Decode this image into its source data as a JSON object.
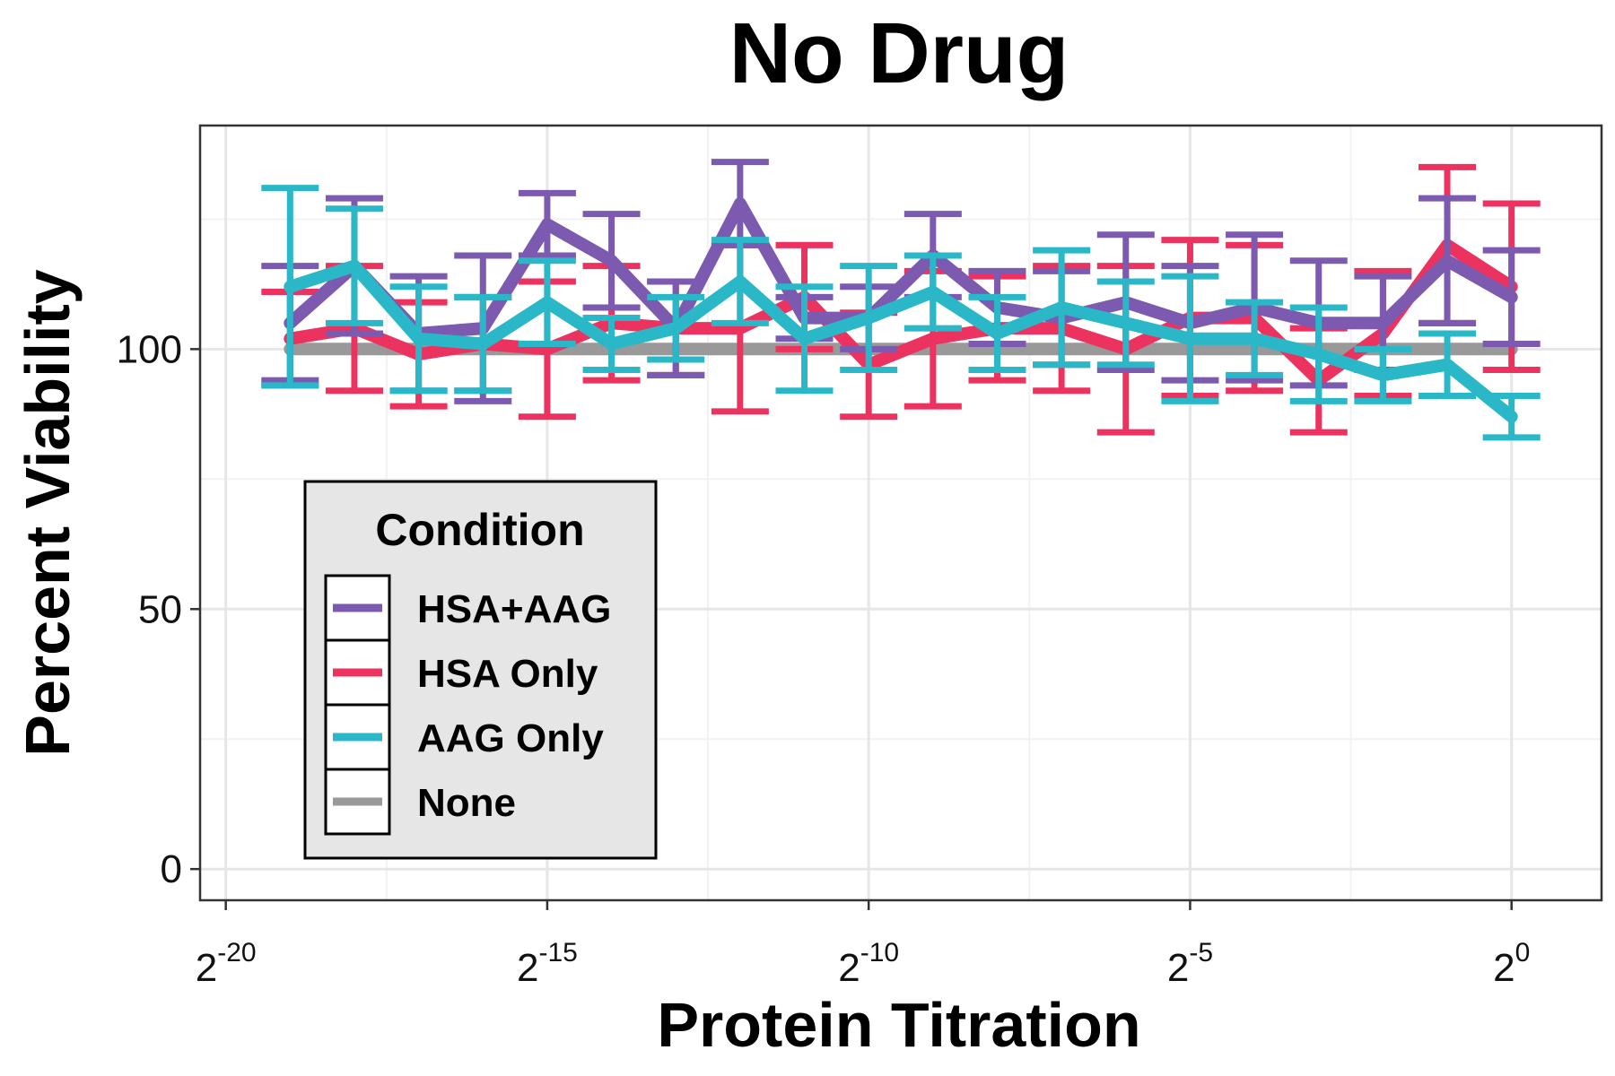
{
  "chart_data": {
    "type": "line",
    "title": "No Drug",
    "xlabel": "Protein Titration",
    "ylabel": "Percent Viability",
    "x_scale": "log2",
    "x_exponents": [
      -19,
      -18,
      -17,
      -16,
      -15,
      -14,
      -13,
      -12,
      -11,
      -10,
      -9,
      -8,
      -7,
      -6,
      -5,
      -4,
      -3,
      -2,
      -1,
      0
    ],
    "xlim_exponent": [
      -20.4,
      1.4
    ],
    "ylim": [
      -6,
      143
    ],
    "x_ticks": [
      {
        "base": "2",
        "exp": "-20",
        "value": -20
      },
      {
        "base": "2",
        "exp": "-15",
        "value": -15
      },
      {
        "base": "2",
        "exp": "-10",
        "value": -10
      },
      {
        "base": "2",
        "exp": "-5",
        "value": -5
      },
      {
        "base": "2",
        "exp": "0",
        "value": 0
      }
    ],
    "y_ticks": [
      {
        "label": "0",
        "value": 0
      },
      {
        "label": "50",
        "value": 50
      },
      {
        "label": "100",
        "value": 100
      }
    ],
    "grid": true,
    "legend": {
      "title": "Condition",
      "placement": "bottom-left"
    },
    "series": [
      {
        "name": "HSA+AAG",
        "color": "#7b5ab0",
        "values": [
          105,
          116,
          103,
          104,
          124,
          117,
          104,
          128,
          106,
          106,
          118,
          108,
          106,
          109,
          105,
          108,
          105,
          105,
          117,
          110
        ],
        "error": [
          11,
          13,
          11,
          14,
          6,
          9,
          9,
          8,
          4,
          6,
          8,
          7,
          9,
          13,
          11,
          14,
          12,
          9,
          12,
          9
        ]
      },
      {
        "name": "HSA Only",
        "color": "#ec3360",
        "values": [
          102,
          104,
          99,
          101,
          100,
          105,
          104,
          104,
          110,
          97,
          102,
          104,
          104,
          100,
          106,
          106,
          94,
          103,
          120,
          112
        ],
        "error": [
          9,
          12,
          10,
          9,
          13,
          11,
          9,
          16,
          10,
          10,
          13,
          10,
          12,
          16,
          15,
          14,
          10,
          12,
          15,
          16
        ]
      },
      {
        "name": "AAG Only",
        "color": "#2ab8c8",
        "values": [
          112,
          116,
          102,
          101,
          109,
          101,
          104,
          113,
          102,
          106,
          111,
          103,
          108,
          105,
          102,
          102,
          99,
          95,
          97,
          87
        ],
        "error": [
          19,
          11,
          10,
          9,
          8,
          5,
          6,
          8,
          10,
          10,
          7,
          7,
          11,
          8,
          12,
          7,
          9,
          5,
          6,
          4
        ]
      },
      {
        "name": "None",
        "color": "#999999",
        "values": [
          100,
          100,
          100,
          100,
          100,
          100,
          100,
          100,
          100,
          100,
          100,
          100,
          100,
          100,
          100,
          100,
          100,
          100,
          100,
          100
        ]
      }
    ]
  }
}
